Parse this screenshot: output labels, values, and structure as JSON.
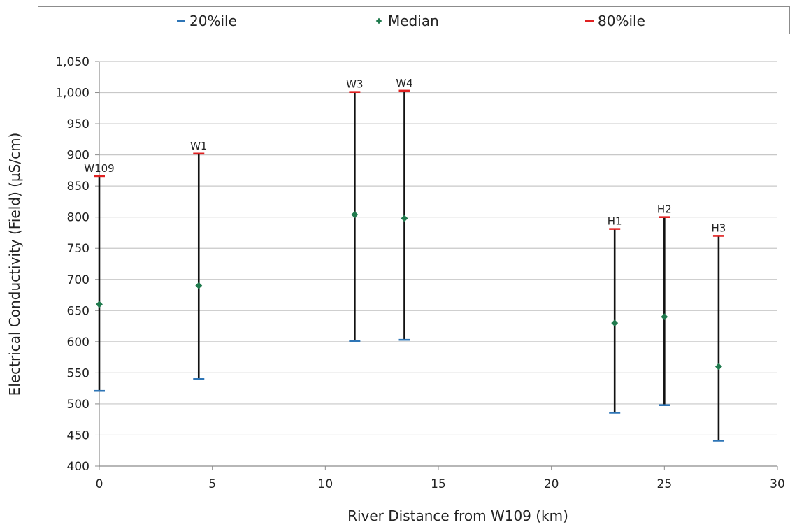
{
  "legend": {
    "p20": "20%ile",
    "median": "Median",
    "p80": "80%ile"
  },
  "colors": {
    "p20": "#2e75b6",
    "median": "#1f7a4d",
    "p80": "#e02020",
    "range_line": "#111111",
    "grid": "#c8c8c8"
  },
  "chart_data": {
    "type": "scatter",
    "title": "",
    "xlabel": "River Distance from W109 (km)",
    "ylabel": "Electrical Conductivity (Field) (μS/cm)",
    "xlim": [
      0,
      30
    ],
    "ylim": [
      400,
      1050
    ],
    "x_ticks": [
      0,
      5,
      10,
      15,
      20,
      25,
      30
    ],
    "y_ticks": [
      400,
      450,
      500,
      550,
      600,
      650,
      700,
      750,
      800,
      850,
      900,
      950,
      1000,
      1050
    ],
    "y_tick_labels": [
      "400",
      "450",
      "500",
      "550",
      "600",
      "650",
      "700",
      "750",
      "800",
      "850",
      "900",
      "950",
      "1,000",
      "1,050"
    ],
    "grid": "horizontal",
    "legend_position": "top",
    "sites": [
      {
        "label": "W109",
        "x": 0,
        "p20": 521,
        "median": 660,
        "p80": 866
      },
      {
        "label": "W1",
        "x": 4.4,
        "p20": 540,
        "median": 690,
        "p80": 902
      },
      {
        "label": "W3",
        "x": 11.3,
        "p20": 601,
        "median": 804,
        "p80": 1001
      },
      {
        "label": "W4",
        "x": 13.5,
        "p20": 603,
        "median": 798,
        "p80": 1003
      },
      {
        "label": "H1",
        "x": 22.8,
        "p20": 486,
        "median": 630,
        "p80": 781
      },
      {
        "label": "H2",
        "x": 25.0,
        "p20": 498,
        "median": 640,
        "p80": 800
      },
      {
        "label": "H3",
        "x": 27.4,
        "p20": 441,
        "median": 560,
        "p80": 770
      }
    ]
  }
}
